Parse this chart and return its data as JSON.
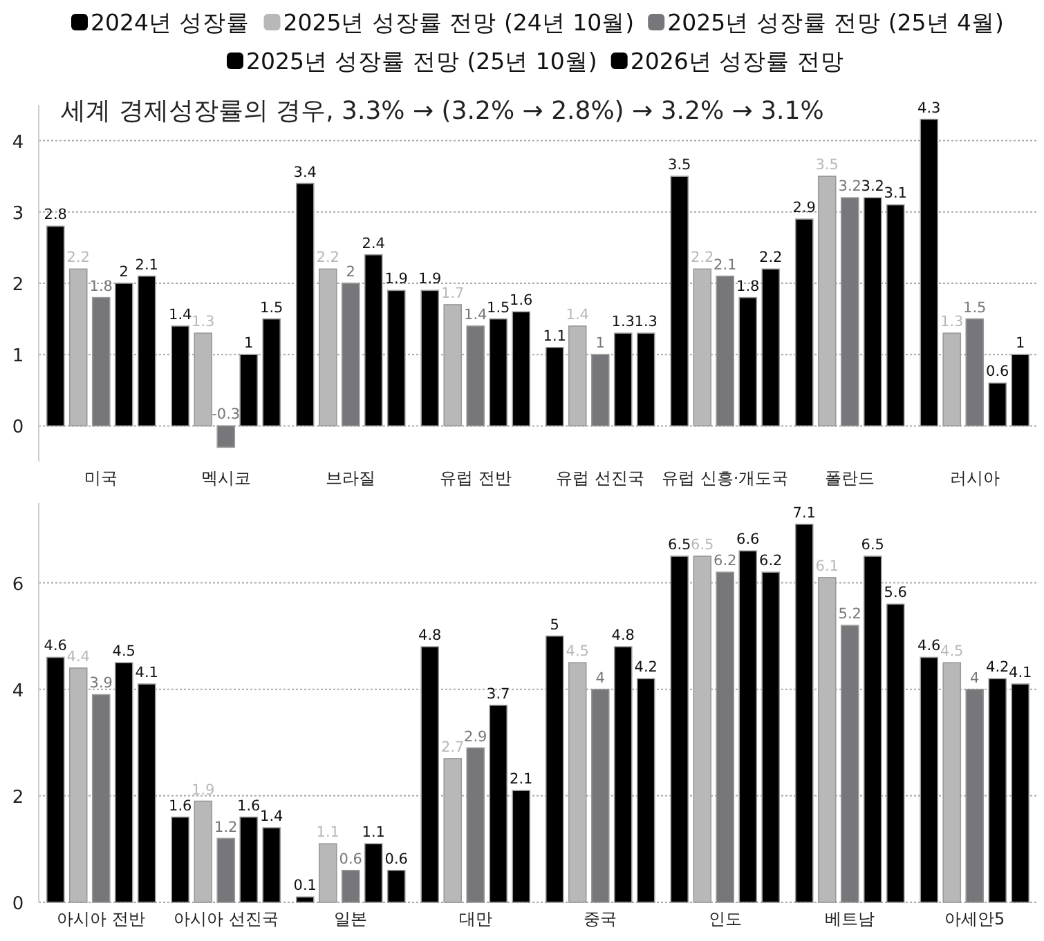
{
  "chart_data": [
    {
      "type": "bar",
      "legend": "top",
      "grid": "y",
      "data_labels": true,
      "annotations": [
        "세계 경제성장률의 경우, 3.3% → (3.2% → 2.8%) → 3.2% → 3.1%"
      ],
      "categories": [
        "미국",
        "멕시코",
        "브라질",
        "유럽 전반",
        "유럽 선진국",
        "유럽 신흥·개도국",
        "폴란드",
        "러시아"
      ],
      "ylim": [
        -0.5,
        4.5
      ],
      "yticks": [
        0,
        1,
        2,
        3,
        4
      ],
      "series": [
        {
          "name": "2024년 성장률",
          "color": "#000000",
          "values": [
            2.8,
            1.4,
            3.4,
            1.9,
            1.1,
            3.5,
            2.9,
            4.3
          ]
        },
        {
          "name": "2025년 성장률 전망 (24년 10월)",
          "color": "#b8b8b8",
          "values": [
            2.2,
            1.3,
            2.2,
            1.7,
            1.4,
            2.2,
            3.5,
            1.3
          ]
        },
        {
          "name": "2025년 성장률 전망 (25년 4월)",
          "color": "#77777b",
          "values": [
            1.8,
            -0.3,
            2,
            1.4,
            1,
            2.1,
            3.2,
            1.5
          ]
        },
        {
          "name": "2025년 성장률 전망 (25년 10월)",
          "color": "#000000",
          "values": [
            2,
            1,
            2.4,
            1.5,
            1.3,
            1.8,
            3.2,
            0.6
          ]
        },
        {
          "name": "2026년 성장률 전망",
          "color": "#000000",
          "values": [
            2.1,
            1.5,
            1.9,
            1.6,
            1.3,
            2.2,
            3.1,
            1
          ]
        }
      ]
    },
    {
      "type": "bar",
      "grid": "y",
      "data_labels": true,
      "categories": [
        "아시아 전반",
        "아시아 선진국",
        "일본",
        "대만",
        "중국",
        "인도",
        "베트남",
        "아세안5"
      ],
      "ylim": [
        0,
        7.5
      ],
      "yticks": [
        0,
        2,
        4,
        6
      ],
      "series": [
        {
          "color": "#000000",
          "values": [
            4.6,
            1.6,
            0.1,
            4.8,
            5,
            6.5,
            7.1,
            4.6
          ]
        },
        {
          "color": "#b8b8b8",
          "values": [
            4.4,
            1.9,
            1.1,
            2.7,
            4.5,
            6.5,
            6.1,
            4.5
          ]
        },
        {
          "color": "#77777b",
          "values": [
            3.9,
            1.2,
            0.6,
            2.9,
            4,
            6.2,
            5.2,
            4
          ]
        },
        {
          "color": "#000000",
          "values": [
            4.5,
            1.6,
            1.1,
            3.7,
            4.8,
            6.6,
            6.5,
            4.2
          ]
        },
        {
          "color": "#000000",
          "values": [
            4.1,
            1.4,
            0.6,
            2.1,
            4.2,
            6.2,
            5.6,
            4.1
          ]
        }
      ]
    }
  ]
}
